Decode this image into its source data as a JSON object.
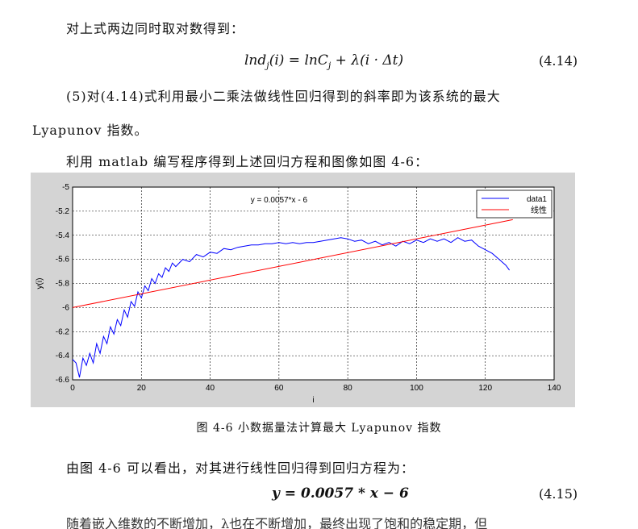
{
  "para1": "对上式两边同时取对数得到：",
  "eq1": {
    "text": "lnd_j(i) = lnC_j + λ(i·Δt)",
    "number": "(4.14)"
  },
  "para2_line1": "(5)对(4.14)式利用最小二乘法做线性回归得到的斜率即为该系统的最大",
  "para2_line2": "Lyapunov 指数。",
  "para3": "利用 matlab 编写程序得到上述回归方程和图像如图 4-6：",
  "caption": "图 4-6    小数据量法计算最大 Lyapunov 指数",
  "para4": "由图 4-6 可以看出，对其进行线性回归得到回归方程为：",
  "eq2": {
    "text": "y = 0.0057 * x − 6",
    "number": "(4.15)"
  },
  "para5_cut": "随着嵌入维数的不断增加，λ也在不断增加，最终出现了饱和的稳定期，但",
  "chart_data": {
    "type": "line",
    "annotation": "y = 0.0057*x - 6",
    "xlabel": "i",
    "ylabel": "y(i)",
    "xlim": [
      0,
      140
    ],
    "ylim": [
      -6.6,
      -5
    ],
    "xticks": [
      0,
      20,
      40,
      60,
      80,
      100,
      120,
      140
    ],
    "yticks": [
      -5,
      -5.2,
      -5.4,
      -5.6,
      -5.8,
      -6,
      -6.2,
      -6.4,
      -6.6
    ],
    "grid": true,
    "legend_position": "top-right",
    "series": [
      {
        "name": "data1",
        "color": "#0000ff",
        "x": [
          0,
          1,
          2,
          3,
          4,
          5,
          6,
          7,
          8,
          9,
          10,
          11,
          12,
          13,
          14,
          15,
          16,
          17,
          18,
          19,
          20,
          21,
          22,
          23,
          24,
          25,
          26,
          27,
          28,
          29,
          30,
          32,
          34,
          36,
          38,
          40,
          42,
          44,
          46,
          48,
          50,
          52,
          54,
          56,
          58,
          60,
          62,
          64,
          66,
          68,
          70,
          72,
          74,
          76,
          78,
          80,
          82,
          84,
          86,
          88,
          90,
          92,
          94,
          96,
          98,
          100,
          102,
          104,
          106,
          108,
          110,
          112,
          114,
          116,
          118,
          120,
          122,
          124,
          126,
          127
        ],
        "y": [
          -6.43,
          -6.46,
          -6.58,
          -6.42,
          -6.48,
          -6.38,
          -6.46,
          -6.3,
          -6.38,
          -6.24,
          -6.3,
          -6.16,
          -6.22,
          -6.1,
          -6.15,
          -6.02,
          -6.08,
          -5.95,
          -5.99,
          -5.87,
          -5.92,
          -5.82,
          -5.86,
          -5.76,
          -5.8,
          -5.72,
          -5.75,
          -5.67,
          -5.7,
          -5.63,
          -5.66,
          -5.6,
          -5.62,
          -5.56,
          -5.58,
          -5.54,
          -5.55,
          -5.51,
          -5.52,
          -5.5,
          -5.49,
          -5.48,
          -5.48,
          -5.47,
          -5.47,
          -5.46,
          -5.47,
          -5.46,
          -5.47,
          -5.46,
          -5.46,
          -5.45,
          -5.44,
          -5.43,
          -5.42,
          -5.43,
          -5.45,
          -5.44,
          -5.47,
          -5.45,
          -5.48,
          -5.46,
          -5.49,
          -5.45,
          -5.47,
          -5.44,
          -5.46,
          -5.43,
          -5.45,
          -5.43,
          -5.46,
          -5.42,
          -5.45,
          -5.44,
          -5.49,
          -5.52,
          -5.55,
          -5.6,
          -5.65,
          -5.69
        ]
      },
      {
        "name": "线性",
        "color": "#ff0000",
        "x": [
          0,
          128
        ],
        "y": [
          -6.0,
          -5.2704
        ]
      }
    ]
  }
}
